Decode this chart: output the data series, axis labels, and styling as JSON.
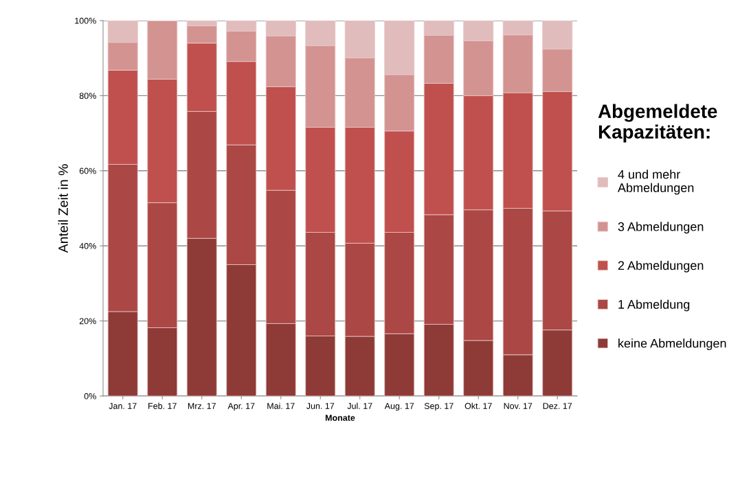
{
  "chart_data": {
    "type": "bar",
    "stacked": true,
    "xlabel": "Monate",
    "ylabel": "Anteil Zeit in %",
    "legend_title": "Abgemeldete\nKapazitäten:",
    "categories": [
      "Jan. 17",
      "Feb. 17",
      "Mrz. 17",
      "Apr. 17",
      "Mai. 17",
      "Jun. 17",
      "Jul. 17",
      "Aug. 17",
      "Sep. 17",
      "Okt. 17",
      "Nov. 17",
      "Dez. 17"
    ],
    "series": [
      {
        "name": "keine Abmeldungen",
        "color": "#8e3a37",
        "values": [
          22.5,
          18.2,
          42.0,
          35.0,
          19.3,
          16.0,
          15.9,
          16.6,
          19.1,
          14.8,
          11.0,
          17.6
        ]
      },
      {
        "name": "1 Abmeldung",
        "color": "#ab4744",
        "values": [
          39.2,
          33.3,
          33.8,
          31.9,
          35.5,
          27.6,
          24.8,
          27.0,
          29.2,
          34.8,
          39.0,
          31.7
        ]
      },
      {
        "name": "2 Abmeldungen",
        "color": "#c0504d",
        "values": [
          25.1,
          32.9,
          18.2,
          22.2,
          27.6,
          28.0,
          30.9,
          27.0,
          35.0,
          30.4,
          30.8,
          31.8
        ]
      },
      {
        "name": "3 Abmeldungen",
        "color": "#d39391",
        "values": [
          7.4,
          15.6,
          4.6,
          8.1,
          13.5,
          21.7,
          18.5,
          15.0,
          12.8,
          14.6,
          15.4,
          11.3
        ]
      },
      {
        "name": "4 und mehr\nAbmeldungen",
        "color": "#e1bcbc",
        "values": [
          5.8,
          0,
          1.4,
          2.8,
          4.1,
          6.7,
          9.9,
          14.4,
          3.9,
          5.4,
          3.8,
          7.6
        ]
      }
    ],
    "ylim": [
      0,
      100
    ],
    "yticks": [
      {
        "value": 0,
        "label": "0%"
      },
      {
        "value": 20,
        "label": "20%"
      },
      {
        "value": 40,
        "label": "40%"
      },
      {
        "value": 60,
        "label": "60%"
      },
      {
        "value": 80,
        "label": "80%"
      },
      {
        "value": 100,
        "label": "100%"
      }
    ],
    "grid": "y",
    "legend": "right"
  }
}
